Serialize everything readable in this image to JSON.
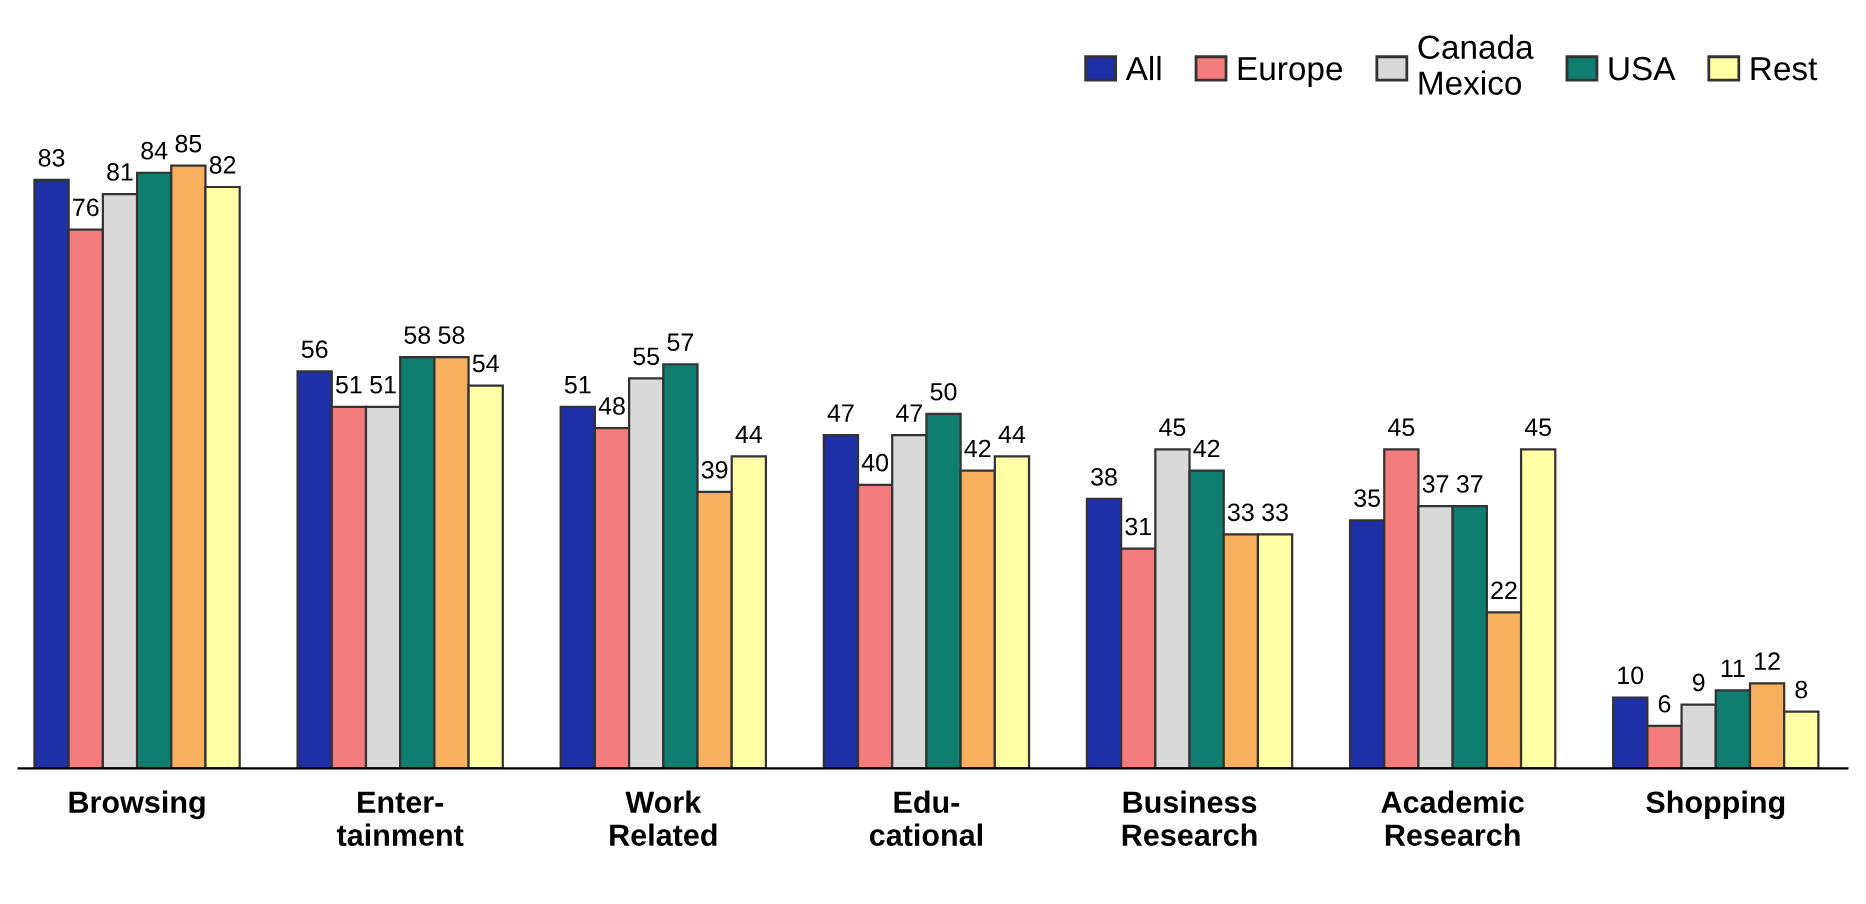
{
  "chart_data": {
    "type": "bar",
    "categories": [
      "Browsing",
      "Enter-\ntainment",
      "Work\nRelated",
      "Edu-\ncational",
      "Business\nResearch",
      "Academic\nResearch",
      "Shopping"
    ],
    "series": [
      {
        "name": "All",
        "color": "#1f2fa8",
        "values": [
          83,
          56,
          51,
          47,
          38,
          35,
          10
        ]
      },
      {
        "name": "Europe",
        "color": "#f47c7c",
        "values": [
          76,
          51,
          48,
          40,
          31,
          45,
          6
        ]
      },
      {
        "name": "Canada\nMexico",
        "color": "#d9d9d9",
        "values": [
          81,
          51,
          55,
          47,
          45,
          37,
          9
        ]
      },
      {
        "name": "USA",
        "color": "#0f7d70",
        "values": [
          84,
          58,
          57,
          50,
          42,
          37,
          11
        ]
      },
      {
        "color": "#f7b05e",
        "values": [
          85,
          58,
          39,
          42,
          33,
          22,
          12
        ]
      },
      {
        "name": "Rest",
        "color": "#ffffa6",
        "values": [
          82,
          54,
          44,
          44,
          33,
          45,
          8
        ]
      }
    ],
    "data_labels": true,
    "legend": "top",
    "grid": false
  }
}
